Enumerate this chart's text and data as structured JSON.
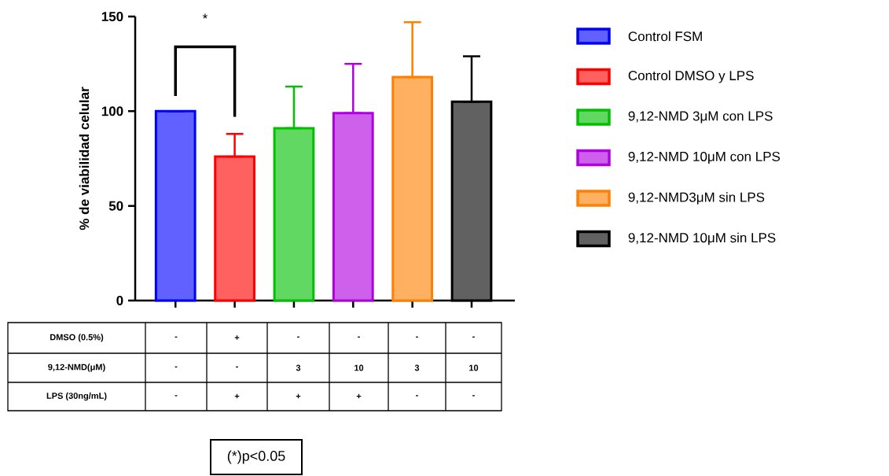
{
  "chart_data": {
    "type": "bar",
    "ylabel": "% de viabilidad celular",
    "categories": [
      null,
      null,
      null,
      null,
      null,
      null
    ],
    "ylim": [
      0,
      150
    ],
    "yticks": [
      0,
      50,
      100,
      150
    ],
    "grid": false,
    "legend": "right",
    "series": [
      {
        "name": "Control FSM",
        "color": "#0000ff",
        "values": [
          100,
          null,
          null,
          null,
          null,
          null
        ],
        "errors": [
          null,
          null,
          null,
          null,
          null,
          null
        ]
      },
      {
        "name": "Control DMSO y LPS",
        "color": "#ff0000",
        "values": [
          null,
          76,
          null,
          null,
          null,
          null
        ],
        "errors": [
          null,
          [
            76,
            88
          ],
          null,
          null,
          null,
          null
        ]
      },
      {
        "name": "9,12-NMD 3μM con LPS",
        "color": "#00c000",
        "values": [
          null,
          null,
          91,
          null,
          null,
          null
        ],
        "errors": [
          null,
          null,
          [
            91,
            113
          ],
          null,
          null,
          null
        ]
      },
      {
        "name": "9,12-NMD 10μM con LPS",
        "color": "#b000e0",
        "values": [
          null,
          null,
          null,
          99,
          null,
          null
        ],
        "errors": [
          null,
          null,
          null,
          [
            99,
            125
          ],
          null,
          null
        ]
      },
      {
        "name": "9,12-NMD3μM sin LPS",
        "color": "#ff8000",
        "values": [
          null,
          null,
          null,
          null,
          118,
          null
        ],
        "errors": [
          null,
          null,
          null,
          null,
          [
            118,
            147
          ],
          null
        ]
      },
      {
        "name": "9,12-NMD 10μM sin LPS",
        "color": "#000000",
        "values": [
          null,
          null,
          null,
          null,
          null,
          105
        ],
        "errors": [
          null,
          null,
          null,
          null,
          null,
          [
            105,
            129
          ]
        ]
      }
    ],
    "annotations": [
      "*",
      "DMSO (0.5%)",
      "-",
      "+",
      "-",
      "-",
      "-",
      "-",
      "9,12-NMD(μM)",
      "-",
      "-",
      "3",
      "10",
      "3",
      "10",
      "LPS (30ng/mL)",
      "-",
      "+",
      "+",
      "+",
      "-",
      "-",
      "(*)p<0.05"
    ]
  }
}
